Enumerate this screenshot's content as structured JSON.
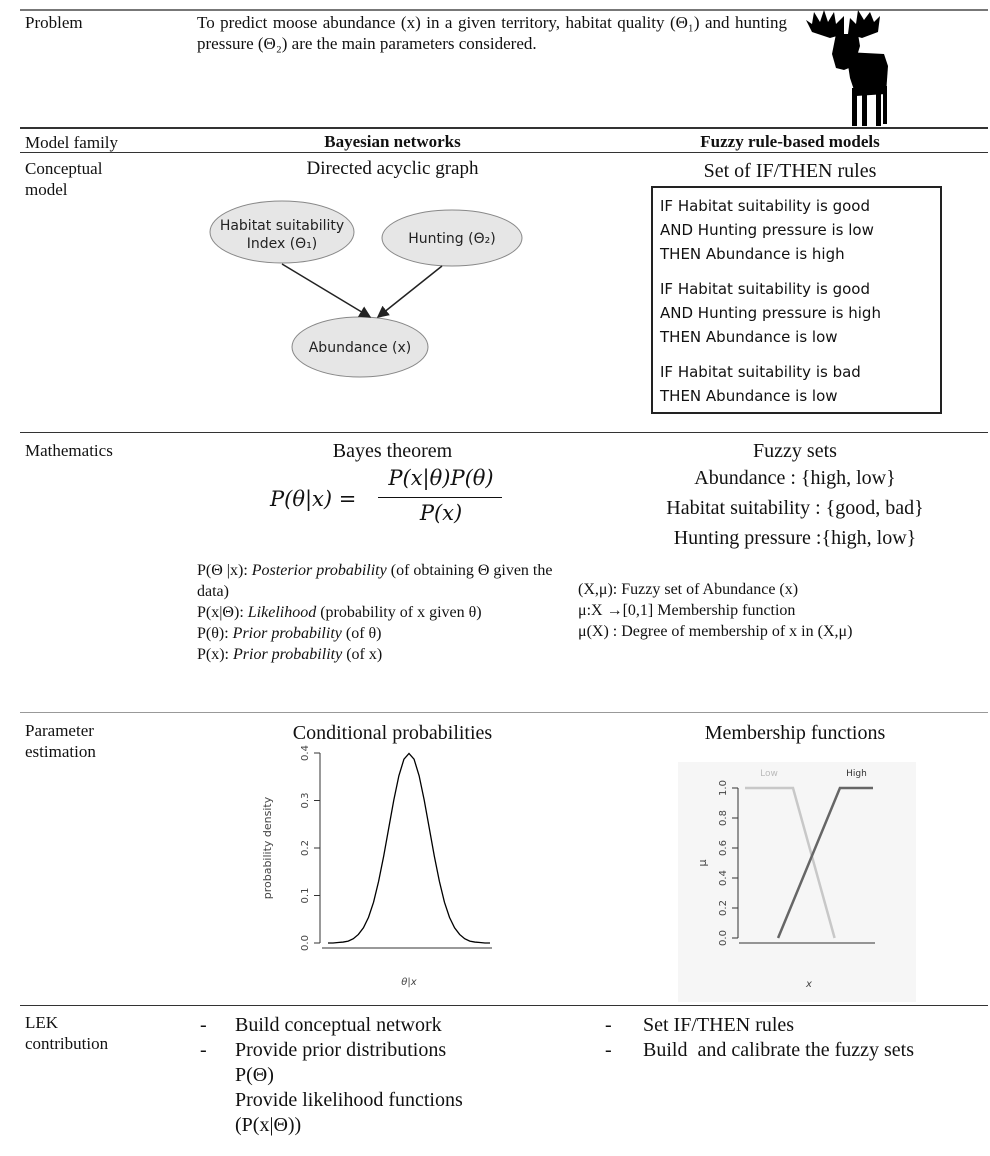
{
  "problem": {
    "label": "Problem",
    "text": "To predict moose abundance (x) in a given territory, habitat quality (Θ₁) and hunting pressure (Θ₂) are the main parameters considered."
  },
  "model_family": {
    "label": "Model family",
    "bayesian": "Bayesian networks",
    "fuzzy": "Fuzzy rule-based models"
  },
  "conceptual_model": {
    "label": "Conceptual model",
    "bayesian_title": "Directed acyclic graph",
    "nodes": [
      {
        "label": [
          "Habitat suitability",
          "Index (Θ₁)"
        ]
      },
      {
        "label": [
          "Hunting (Θ₂)"
        ]
      },
      {
        "label": [
          "Abundance (x)"
        ]
      }
    ],
    "fuzzy_title": "Set of IF/THEN rules",
    "rules": [
      [
        "IF Habitat suitability is good",
        "AND Hunting pressure is low",
        "THEN Abundance is high"
      ],
      [
        "IF Habitat suitability is good",
        "AND Hunting pressure is high",
        "THEN Abundance is low"
      ],
      [
        "IF Habitat suitability is bad",
        "THEN Abundance is low"
      ]
    ]
  },
  "mathematics": {
    "label": "Mathematics",
    "bayesian_title": "Bayes theorem",
    "formula": {
      "lhs": "P(θ|x) =",
      "numerator": "P(x|θ)P(θ)",
      "denominator": "P(x)"
    },
    "bayesian_definitions": [
      {
        "term": "P(Θ |x):",
        "name": "Posterior probability",
        "detail": "(of obtaining Θ given the data)"
      },
      {
        "term": "P(x|Θ):",
        "name": "Likelihood",
        "detail": "(probability of x given θ)"
      },
      {
        "term": "P(θ):",
        "name": "Prior probability",
        "detail": "(of θ)"
      },
      {
        "term": "P(x):",
        "name": "Prior probability",
        "detail": "(of x)"
      }
    ],
    "fuzzy_title": "Fuzzy sets",
    "fuzzy_sets": [
      "Abundance : {high, low}",
      "Habitat suitability : {good, bad}",
      "Hunting pressure :{high, low}"
    ],
    "fuzzy_definitions": [
      "(X,μ): Fuzzy set of Abundance (x)",
      "μ:X →[0,1] Membership function",
      "μ(X) : Degree of membership of x in (X,μ)"
    ]
  },
  "parameter_estimation": {
    "label": "Parameter estimation",
    "bayesian_title": "Conditional probabilities",
    "fuzzy_title": "Membership functions"
  },
  "lek_contribution": {
    "label": "LEK contribution",
    "bayesian": [
      "Build conceptual network",
      "Provide prior distributions",
      "P(Θ)",
      "Provide likelihood functions",
      "(P(x|Θ))"
    ],
    "fuzzy": [
      "Set IF/THEN rules",
      "Build  and calibrate the fuzzy sets"
    ]
  },
  "chart_data": [
    {
      "type": "line",
      "y_label": "probability density",
      "x_label": "θ|x",
      "color": "#000000",
      "x": [
        -4,
        -3.75,
        -3.5,
        -3.25,
        -3,
        -2.75,
        -2.5,
        -2.25,
        -2,
        -1.75,
        -1.5,
        -1.25,
        -1,
        -0.75,
        -0.5,
        -0.25,
        0,
        0.25,
        0.5,
        0.75,
        1,
        1.25,
        1.5,
        1.75,
        2,
        2.25,
        2.5,
        2.75,
        3,
        3.25,
        3.5,
        3.75,
        4
      ],
      "values": [
        0.0,
        0.0,
        0.001,
        0.002,
        0.004,
        0.009,
        0.018,
        0.032,
        0.054,
        0.086,
        0.13,
        0.183,
        0.242,
        0.301,
        0.352,
        0.387,
        0.399,
        0.387,
        0.352,
        0.301,
        0.242,
        0.183,
        0.13,
        0.086,
        0.054,
        0.032,
        0.018,
        0.009,
        0.004,
        0.002,
        0.001,
        0.0,
        0.0
      ],
      "xlim": [
        -4,
        4
      ],
      "ylim": [
        0,
        0.4
      ],
      "yticks": [
        {
          "value": 0,
          "label": "0.0"
        },
        0.1,
        0.2,
        0.3,
        0.4
      ]
    },
    {
      "type": "line",
      "y_label": "μ",
      "x_label": "x",
      "xlim": [
        0,
        6
      ],
      "ylim": [
        0,
        1
      ],
      "yticks": [
        {
          "value": 0,
          "label": "0.0"
        },
        0.2,
        0.4,
        0.6,
        0.8,
        {
          "value": 1,
          "label": "1.0"
        }
      ],
      "series": [
        {
          "name": "Low",
          "color": "#c8c8c8",
          "x": [
            0,
            2.25,
            4.2
          ],
          "values": [
            1,
            1,
            0
          ]
        },
        {
          "name": "High",
          "color": "#666666",
          "x": [
            1.55,
            4.45,
            6
          ],
          "values": [
            0,
            1,
            1
          ]
        }
      ]
    }
  ]
}
